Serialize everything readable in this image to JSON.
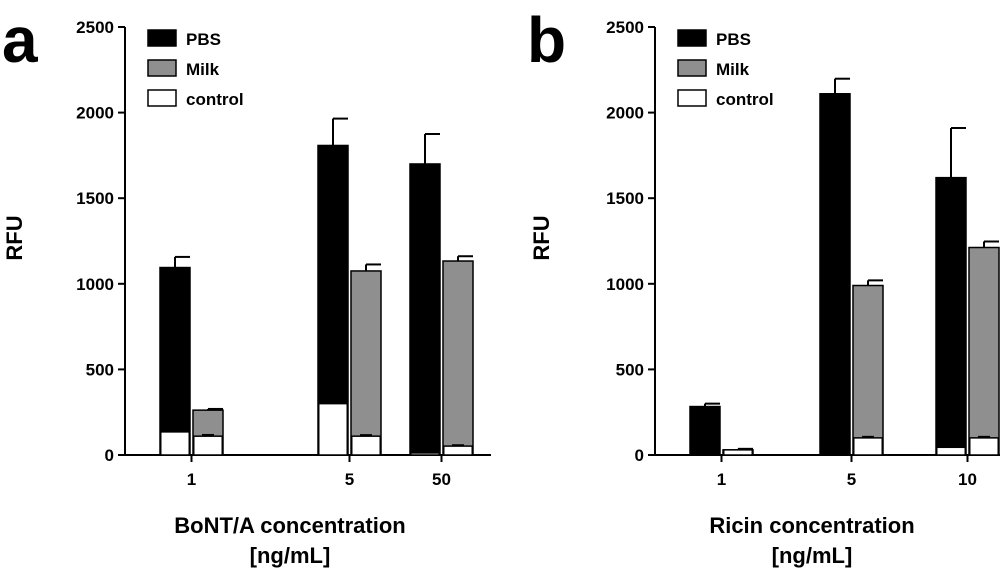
{
  "chart_data": [
    {
      "type": "bar",
      "panel": "a",
      "categories": [
        "1",
        "5",
        "50"
      ],
      "series": [
        {
          "name": "PBS",
          "values": [
            1095,
            1808,
            1700
          ],
          "errors": [
            62,
            157,
            175
          ],
          "color": "#000000"
        },
        {
          "name": "Milk",
          "values": [
            262,
            1075,
            1133
          ],
          "errors": [
            7,
            38,
            28
          ],
          "color": "#8f8f8f"
        },
        {
          "name": "control",
          "values": [
            135,
            300,
            12
          ],
          "errors": [
            0,
            0,
            0
          ],
          "color": "#ffffff"
        }
      ],
      "control_pairs": [
        [
          135,
          110
        ],
        [
          300,
          110
        ],
        [
          12,
          52
        ]
      ],
      "control_errors": [
        [
          0,
          7
        ],
        [
          0,
          6
        ],
        [
          0,
          5
        ]
      ],
      "xlabel": "BoNT/A concentration",
      "xlabel_units": "[ng/mL]",
      "ylabel": "RFU",
      "ylim": [
        0,
        2500
      ],
      "yticks": [
        "0",
        "500",
        "1000",
        "1500",
        "2000",
        "2500"
      ],
      "legend": [
        "PBS",
        "Milk",
        "control"
      ],
      "legend_position": "top-left"
    },
    {
      "type": "bar",
      "panel": "b",
      "categories": [
        "1",
        "5",
        "10"
      ],
      "series": [
        {
          "name": "PBS",
          "values": [
            283,
            2110,
            1620
          ],
          "errors": [
            17,
            88,
            290
          ],
          "color": "#000000"
        },
        {
          "name": "Milk",
          "values": [
            30,
            990,
            1212
          ],
          "errors": [
            6,
            30,
            35
          ],
          "color": "#8f8f8f"
        },
        {
          "name": "control",
          "values": [
            0,
            0,
            45
          ],
          "errors": [
            0,
            0,
            0
          ],
          "color": "#ffffff"
        }
      ],
      "control_pairs": [
        [
          0,
          30
        ],
        [
          0,
          100
        ],
        [
          45,
          100
        ]
      ],
      "control_errors": [
        [
          0,
          0
        ],
        [
          0,
          6
        ],
        [
          0,
          6
        ]
      ],
      "xlabel": "Ricin concentration",
      "xlabel_units": "[ng/mL]",
      "ylabel": "RFU",
      "ylim": [
        0,
        2500
      ],
      "yticks": [
        "0",
        "500",
        "1000",
        "1500",
        "2000",
        "2500"
      ],
      "legend": [
        "PBS",
        "Milk",
        "control"
      ],
      "legend_position": "top-left"
    }
  ]
}
